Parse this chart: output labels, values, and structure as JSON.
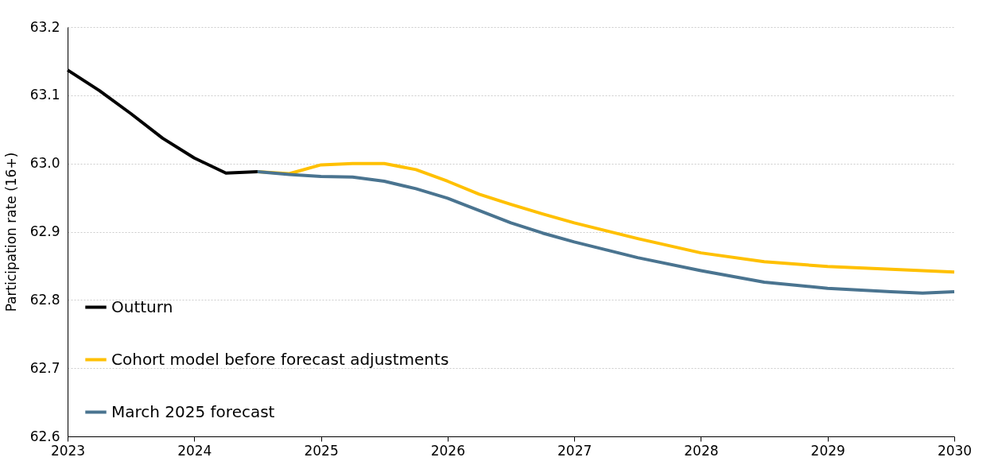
{
  "chart_data": {
    "type": "line",
    "ylabel": "Participation rate (16+)",
    "xlim": [
      2023,
      2030
    ],
    "xticks": [
      2023,
      2024,
      2025,
      2026,
      2027,
      2028,
      2029,
      2030
    ],
    "ylim": [
      62.6,
      63.2
    ],
    "yticks": [
      62.6,
      62.7,
      62.8,
      62.9,
      {
        "value": 63,
        "label": "63.0"
      },
      63.1,
      63.2
    ],
    "grid": "y",
    "legend": "bottom left",
    "line_style": "solid",
    "marker": "none",
    "series": [
      {
        "name": "Outturn",
        "color": "#000000",
        "x": [
          2023,
          2023.25,
          2023.5,
          2023.75,
          2024,
          2024.25,
          2024.5
        ],
        "values": [
          63.137,
          63.107,
          63.073,
          63.037,
          63.008,
          62.986,
          62.988
        ]
      },
      {
        "name": "Cohort model before forecast adjustments",
        "color": "#ffc000",
        "x": [
          2024.5,
          2024.75,
          2025,
          2025.25,
          2025.5,
          2025.75,
          2026,
          2026.25,
          2026.5,
          2026.75,
          2027,
          2027.5,
          2028,
          2028.5,
          2029,
          2029.5,
          2030
        ],
        "values": [
          62.988,
          62.985,
          62.998,
          63.0,
          63.0,
          62.991,
          62.974,
          62.955,
          62.94,
          62.926,
          62.913,
          62.89,
          62.869,
          62.856,
          62.849,
          62.845,
          62.841
        ]
      },
      {
        "name": "March 2025 forecast",
        "color": "#4a7490",
        "x": [
          2024.5,
          2024.75,
          2025,
          2025.25,
          2025.5,
          2025.75,
          2026,
          2026.25,
          2026.5,
          2026.75,
          2027,
          2027.5,
          2028,
          2028.5,
          2029,
          2029.5,
          2029.75,
          2030
        ],
        "values": [
          62.988,
          62.984,
          62.981,
          62.98,
          62.974,
          62.963,
          62.949,
          62.931,
          62.913,
          62.898,
          62.885,
          62.862,
          62.843,
          62.826,
          62.817,
          62.812,
          62.81,
          62.812
        ]
      }
    ]
  }
}
